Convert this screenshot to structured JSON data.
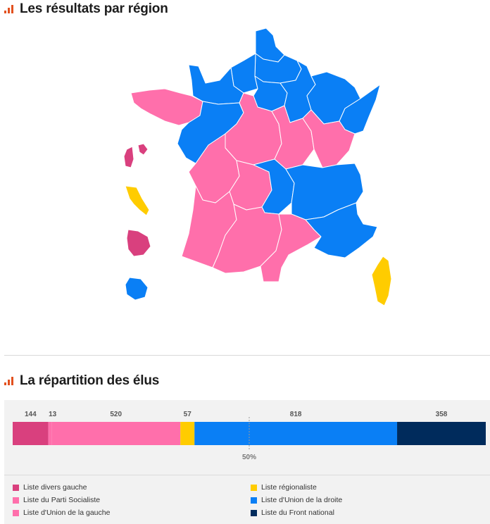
{
  "section1": {
    "title": "Les résultats par région"
  },
  "section2": {
    "title": "La répartition des élus"
  },
  "colors": {
    "divers_gauche": "#d9407e",
    "parti_socialiste": "#ff6fab",
    "union_gauche": "#ff6fab",
    "regionaliste": "#ffcc00",
    "union_droite": "#0a7ff5",
    "front_national": "#002b5c",
    "accent": "#e2511f"
  },
  "chart_data": {
    "type": "bar",
    "orientation": "horizontal-stacked",
    "categories": [
      "Liste divers gauche",
      "Liste d'Union de la gauche",
      "Liste du Parti Socialiste",
      "Liste régionaliste",
      "Liste d'Union de la droite",
      "Liste du Front national"
    ],
    "values": [
      144,
      13,
      520,
      57,
      818,
      358
    ],
    "value_labels": [
      "144",
      "13",
      "520",
      "57",
      "818",
      "358"
    ],
    "reference_line": {
      "value": 955,
      "label": "50%"
    },
    "total": 1910
  },
  "legend": [
    {
      "label": "Liste divers gauche",
      "color": "#d9407e"
    },
    {
      "label": "Liste du Parti Socialiste",
      "color": "#ff6fab"
    },
    {
      "label": "Liste d'Union de la gauche",
      "color": "#ff6fab"
    },
    {
      "label": "Liste régionaliste",
      "color": "#ffcc00"
    },
    {
      "label": "Liste d'Union de la droite",
      "color": "#0a7ff5"
    },
    {
      "label": "Liste du Front national",
      "color": "#002b5c"
    }
  ],
  "map": {
    "regions": [
      {
        "name": "Nord-Pas-de-Calais",
        "result": "union_droite"
      },
      {
        "name": "Picardie",
        "result": "union_droite"
      },
      {
        "name": "Haute-Normandie",
        "result": "union_droite"
      },
      {
        "name": "Basse-Normandie",
        "result": "union_droite"
      },
      {
        "name": "Île-de-France",
        "result": "union_droite"
      },
      {
        "name": "Champagne-Ardenne",
        "result": "union_droite"
      },
      {
        "name": "Lorraine",
        "result": "union_droite"
      },
      {
        "name": "Alsace",
        "result": "union_droite"
      },
      {
        "name": "Bretagne",
        "result": "parti_socialiste"
      },
      {
        "name": "Pays de la Loire",
        "result": "union_droite"
      },
      {
        "name": "Centre",
        "result": "parti_socialiste"
      },
      {
        "name": "Bourgogne",
        "result": "parti_socialiste"
      },
      {
        "name": "Franche-Comté",
        "result": "parti_socialiste"
      },
      {
        "name": "Poitou-Charentes",
        "result": "parti_socialiste"
      },
      {
        "name": "Limousin",
        "result": "parti_socialiste"
      },
      {
        "name": "Auvergne",
        "result": "union_droite"
      },
      {
        "name": "Rhône-Alpes",
        "result": "union_droite"
      },
      {
        "name": "Aquitaine",
        "result": "parti_socialiste"
      },
      {
        "name": "Midi-Pyrénées",
        "result": "parti_socialiste"
      },
      {
        "name": "Languedoc-Roussillon",
        "result": "parti_socialiste"
      },
      {
        "name": "Provence-Alpes-Côte d'Azur",
        "result": "union_droite"
      },
      {
        "name": "Corse",
        "result": "regionaliste"
      },
      {
        "name": "Guadeloupe",
        "result": "divers_gauche"
      },
      {
        "name": "Martinique",
        "result": "regionaliste"
      },
      {
        "name": "Guyane",
        "result": "divers_gauche"
      },
      {
        "name": "La Réunion",
        "result": "union_droite"
      }
    ]
  }
}
